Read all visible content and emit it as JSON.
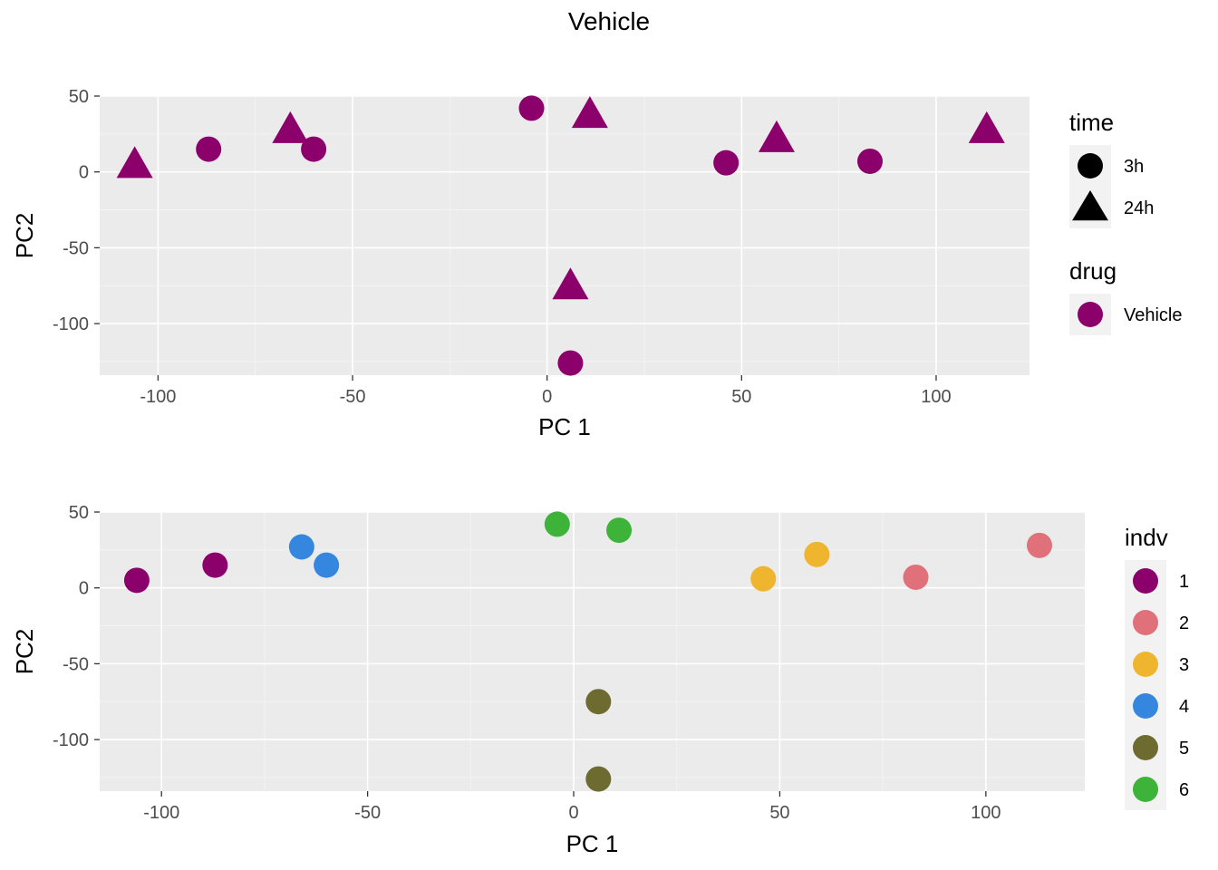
{
  "title": "Vehicle",
  "chart_data": [
    {
      "type": "scatter",
      "xlabel": "PC 1",
      "ylabel": "PC2",
      "xlim": [
        -115,
        124
      ],
      "ylim": [
        -134,
        50
      ],
      "xticks": [
        -100,
        -50,
        0,
        50,
        100
      ],
      "yticks": [
        50,
        0,
        -50,
        -100
      ],
      "grid": true,
      "points": [
        {
          "x": -106,
          "y": 5,
          "time": "24h",
          "drug": "Vehicle"
        },
        {
          "x": -87,
          "y": 15,
          "time": "3h",
          "drug": "Vehicle"
        },
        {
          "x": -66,
          "y": 28,
          "time": "24h",
          "drug": "Vehicle"
        },
        {
          "x": -60,
          "y": 15,
          "time": "3h",
          "drug": "Vehicle"
        },
        {
          "x": -4,
          "y": 42,
          "time": "3h",
          "drug": "Vehicle"
        },
        {
          "x": 11,
          "y": 38,
          "time": "24h",
          "drug": "Vehicle"
        },
        {
          "x": 46,
          "y": 6,
          "time": "3h",
          "drug": "Vehicle"
        },
        {
          "x": 59,
          "y": 22,
          "time": "24h",
          "drug": "Vehicle"
        },
        {
          "x": 83,
          "y": 7,
          "time": "3h",
          "drug": "Vehicle"
        },
        {
          "x": 113,
          "y": 28,
          "time": "24h",
          "drug": "Vehicle"
        },
        {
          "x": 6,
          "y": -75,
          "time": "24h",
          "drug": "Vehicle"
        },
        {
          "x": 6,
          "y": -126,
          "time": "3h",
          "drug": "Vehicle"
        }
      ],
      "legends": [
        {
          "title": "time",
          "entries": [
            {
              "label": "3h",
              "shape": "circle"
            },
            {
              "label": "24h",
              "shape": "triangle"
            }
          ]
        },
        {
          "title": "drug",
          "entries": [
            {
              "label": "Vehicle",
              "color": "#8B006B"
            }
          ]
        }
      ],
      "legend_position": "right"
    },
    {
      "type": "scatter",
      "xlabel": "PC 1",
      "ylabel": "PC2",
      "xlim": [
        -115,
        124
      ],
      "ylim": [
        -134,
        50
      ],
      "xticks": [
        -100,
        -50,
        0,
        50,
        100
      ],
      "yticks": [
        50,
        0,
        -50,
        -100
      ],
      "grid": true,
      "points": [
        {
          "x": -106,
          "y": 5,
          "indv": "1"
        },
        {
          "x": -87,
          "y": 15,
          "indv": "1"
        },
        {
          "x": -66,
          "y": 27,
          "indv": "4"
        },
        {
          "x": -60,
          "y": 15,
          "indv": "4"
        },
        {
          "x": -4,
          "y": 42,
          "indv": "6"
        },
        {
          "x": 11,
          "y": 38,
          "indv": "6"
        },
        {
          "x": 46,
          "y": 6,
          "indv": "3"
        },
        {
          "x": 59,
          "y": 22,
          "indv": "3"
        },
        {
          "x": 83,
          "y": 7,
          "indv": "2"
        },
        {
          "x": 113,
          "y": 28,
          "indv": "2"
        },
        {
          "x": 6,
          "y": -75,
          "indv": "5"
        },
        {
          "x": 6,
          "y": -126,
          "indv": "5"
        }
      ],
      "legends": [
        {
          "title": "indv",
          "entries": [
            {
              "label": "1",
              "color": "#8B006B"
            },
            {
              "label": "2",
              "color": "#E0707A"
            },
            {
              "label": "3",
              "color": "#F0B52E"
            },
            {
              "label": "4",
              "color": "#3586DF"
            },
            {
              "label": "5",
              "color": "#6E6B30"
            },
            {
              "label": "6",
              "color": "#3DB33A"
            }
          ]
        }
      ],
      "legend_position": "right"
    }
  ]
}
